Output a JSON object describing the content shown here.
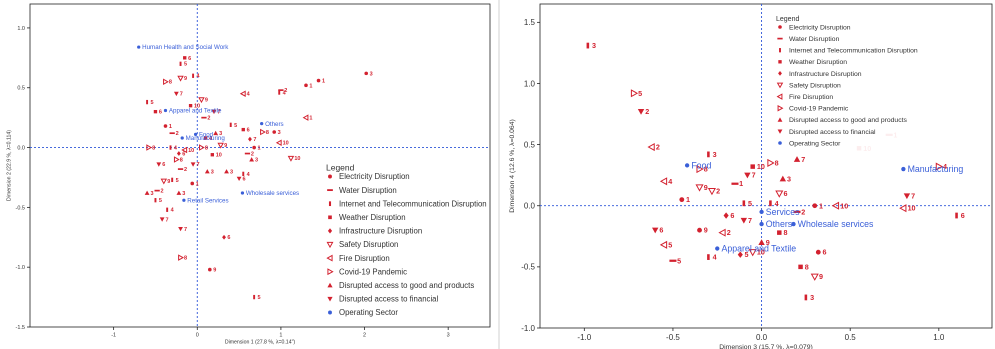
{
  "chart_data": [
    {
      "type": "scatter",
      "panel": "left",
      "xlabel": "Dimension 1 (27.8 %, λ=0.14\")",
      "ylabel": "Dimension 2 (22.9 %, λ=0.114)",
      "xlim": [
        -2,
        3.5
      ],
      "ylim": [
        -1.5,
        1.2
      ],
      "xticks": [
        -1,
        0,
        1,
        2,
        3
      ],
      "yticks": [
        -1.5,
        -1.0,
        -0.5,
        0.0,
        0.5,
        1.0
      ],
      "ytick_labels": [
        "-1.5",
        "-1.0",
        "-0.5",
        "0.0",
        "0.5",
        "1.0"
      ],
      "xtick_labels": [
        "-1",
        "0",
        "1",
        "2",
        "3"
      ],
      "legend": {
        "title": "Legend",
        "placement": "center-right",
        "entries": [
          {
            "label": "Electricity Disruption",
            "marker": "circle"
          },
          {
            "label": "Water Disruption",
            "marker": "dash"
          },
          {
            "label": "Internet and Telecommunication Disruption",
            "marker": "bar"
          },
          {
            "label": "Weather Disruption",
            "marker": "square"
          },
          {
            "label": "Infrastructure Disruption",
            "marker": "diamond"
          },
          {
            "label": "Safety Disruption",
            "marker": "tri-down-open"
          },
          {
            "label": "Fire Disruption",
            "marker": "tri-left-open"
          },
          {
            "label": "Covid-19 Pandemic",
            "marker": "tri-right-open"
          },
          {
            "label": "Disrupted access to good and products",
            "marker": "tri-up"
          },
          {
            "label": "Disrupted access to financial",
            "marker": "tri-down"
          },
          {
            "label": "Operating Sector",
            "marker": "dot-blue"
          }
        ]
      },
      "operating_sectors": [
        {
          "label": "Human Health and Social Work",
          "x": -0.7,
          "y": 0.84
        },
        {
          "label": "Apparel and Textile",
          "x": -0.38,
          "y": 0.31
        },
        {
          "label": "Food",
          "x": -0.02,
          "y": 0.11
        },
        {
          "label": "Manufacturing",
          "x": -0.18,
          "y": 0.08
        },
        {
          "label": "Others",
          "x": 0.77,
          "y": 0.2
        },
        {
          "label": "Wholesale services",
          "x": 0.54,
          "y": -0.38
        },
        {
          "label": "Retail Services",
          "x": -0.16,
          "y": -0.44
        }
      ],
      "category_points": [
        {
          "label": "3",
          "x": 2.02,
          "y": 0.62,
          "marker": "circle"
        },
        {
          "label": "1",
          "x": 1.45,
          "y": 0.56,
          "marker": "circle"
        },
        {
          "label": "1",
          "x": 1.3,
          "y": 0.52,
          "marker": "circle"
        },
        {
          "label": "2",
          "x": 1.0,
          "y": 0.48,
          "marker": "dash"
        },
        {
          "label": "4",
          "x": 0.98,
          "y": 0.46,
          "marker": "bar"
        },
        {
          "label": "4",
          "x": 0.55,
          "y": 0.45,
          "marker": "tri-left-open"
        },
        {
          "label": "1",
          "x": 1.3,
          "y": 0.25,
          "marker": "tri-left-open"
        },
        {
          "label": "10",
          "x": 1.12,
          "y": -0.09,
          "marker": "tri-down-open"
        },
        {
          "label": "10",
          "x": 0.98,
          "y": 0.04,
          "marker": "tri-left-open"
        },
        {
          "label": "8",
          "x": 0.78,
          "y": 0.13,
          "marker": "tri-right-open"
        },
        {
          "label": "3",
          "x": 0.92,
          "y": 0.13,
          "marker": "circle"
        },
        {
          "label": "5",
          "x": 0.4,
          "y": 0.19,
          "marker": "bar"
        },
        {
          "label": "6",
          "x": 0.55,
          "y": 0.15,
          "marker": "square"
        },
        {
          "label": "7",
          "x": 0.63,
          "y": 0.07,
          "marker": "diamond"
        },
        {
          "label": "1",
          "x": 0.68,
          "y": 0.0,
          "marker": "circle"
        },
        {
          "label": "2",
          "x": 0.6,
          "y": -0.05,
          "marker": "dash"
        },
        {
          "label": "3",
          "x": 0.65,
          "y": -0.1,
          "marker": "tri-up"
        },
        {
          "label": "4",
          "x": 0.55,
          "y": -0.22,
          "marker": "bar"
        },
        {
          "label": "6",
          "x": 0.5,
          "y": -0.26,
          "marker": "tri-down"
        },
        {
          "label": "6",
          "x": 0.32,
          "y": -0.75,
          "marker": "diamond"
        },
        {
          "label": "3",
          "x": 0.35,
          "y": -0.2,
          "marker": "tri-up"
        },
        {
          "label": "9",
          "x": 0.28,
          "y": 0.02,
          "marker": "tri-down-open"
        },
        {
          "label": "10",
          "x": 0.18,
          "y": -0.06,
          "marker": "square"
        },
        {
          "label": "4",
          "x": 0.1,
          "y": 0.08,
          "marker": "square"
        },
        {
          "label": "8",
          "x": 0.05,
          "y": 0.0,
          "marker": "tri-right-open"
        },
        {
          "label": "7",
          "x": -0.05,
          "y": -0.14,
          "marker": "tri-down"
        },
        {
          "label": "3",
          "x": 0.12,
          "y": -0.2,
          "marker": "tri-up"
        },
        {
          "label": "2",
          "x": -0.2,
          "y": -0.18,
          "marker": "dash"
        },
        {
          "label": "5",
          "x": -0.3,
          "y": -0.27,
          "marker": "bar"
        },
        {
          "label": "1",
          "x": -0.06,
          "y": -0.3,
          "marker": "circle"
        },
        {
          "label": "3",
          "x": -0.22,
          "y": -0.38,
          "marker": "tri-up"
        },
        {
          "label": "9",
          "x": -0.4,
          "y": -0.28,
          "marker": "tri-down-open"
        },
        {
          "label": "2",
          "x": -0.48,
          "y": -0.36,
          "marker": "dash"
        },
        {
          "label": "4",
          "x": -0.36,
          "y": -0.52,
          "marker": "bar"
        },
        {
          "label": "7",
          "x": -0.42,
          "y": -0.6,
          "marker": "tri-down"
        },
        {
          "label": "5",
          "x": -0.5,
          "y": -0.44,
          "marker": "bar"
        },
        {
          "label": "3",
          "x": -0.6,
          "y": -0.38,
          "marker": "tri-up"
        },
        {
          "label": "6",
          "x": -0.46,
          "y": -0.14,
          "marker": "tri-down"
        },
        {
          "label": "8",
          "x": -0.58,
          "y": 0.0,
          "marker": "tri-right-open"
        },
        {
          "label": "5",
          "x": -0.6,
          "y": 0.38,
          "marker": "bar"
        },
        {
          "label": "6",
          "x": -0.5,
          "y": 0.3,
          "marker": "square"
        },
        {
          "label": "8",
          "x": -0.38,
          "y": 0.55,
          "marker": "tri-right-open"
        },
        {
          "label": "9",
          "x": -0.2,
          "y": 0.58,
          "marker": "tri-down-open"
        },
        {
          "label": "4",
          "x": -0.05,
          "y": 0.6,
          "marker": "bar"
        },
        {
          "label": "5",
          "x": -0.2,
          "y": 0.7,
          "marker": "bar"
        },
        {
          "label": "6",
          "x": -0.15,
          "y": 0.75,
          "marker": "square"
        },
        {
          "label": "7",
          "x": -0.25,
          "y": 0.45,
          "marker": "tri-down"
        },
        {
          "label": "9",
          "x": 0.05,
          "y": 0.4,
          "marker": "tri-down-open"
        },
        {
          "label": "10",
          "x": -0.08,
          "y": 0.35,
          "marker": "square"
        },
        {
          "label": "2",
          "x": 0.08,
          "y": 0.25,
          "marker": "dash"
        },
        {
          "label": "7",
          "x": 0.2,
          "y": 0.3,
          "marker": "tri-down"
        },
        {
          "label": "3",
          "x": 0.22,
          "y": 0.12,
          "marker": "tri-up"
        },
        {
          "label": "1",
          "x": -0.38,
          "y": 0.18,
          "marker": "circle"
        },
        {
          "label": "2",
          "x": -0.3,
          "y": 0.12,
          "marker": "dash"
        },
        {
          "label": "4",
          "x": -0.32,
          "y": 0.0,
          "marker": "bar"
        },
        {
          "label": "6",
          "x": -0.22,
          "y": -0.05,
          "marker": "diamond"
        },
        {
          "label": "8",
          "x": -0.25,
          "y": -0.1,
          "marker": "tri-right-open"
        },
        {
          "label": "10",
          "x": -0.15,
          "y": -0.02,
          "marker": "tri-left-open"
        },
        {
          "label": "7",
          "x": -0.2,
          "y": -0.68,
          "marker": "tri-down"
        },
        {
          "label": "8",
          "x": -0.2,
          "y": -0.92,
          "marker": "tri-right-open"
        },
        {
          "label": "9",
          "x": 0.15,
          "y": -1.02,
          "marker": "circle"
        },
        {
          "label": "5",
          "x": 0.68,
          "y": -1.25,
          "marker": "bar"
        }
      ]
    },
    {
      "type": "scatter",
      "panel": "right",
      "xlabel": "Dimension 3 (15.7 %, λ=0.079)",
      "ylabel": "Dimension 4 (12.6 %, λ=0.064)",
      "xlim": [
        -1.25,
        1.3
      ],
      "ylim": [
        -1.0,
        1.65
      ],
      "xticks": [
        -1.0,
        -0.5,
        0.0,
        0.5,
        1.0
      ],
      "yticks": [
        -1.0,
        -0.5,
        0.0,
        0.5,
        1.0,
        1.5
      ],
      "xtick_labels": [
        "-1.0",
        "-0.5",
        "0.0",
        "0.5",
        "1.0"
      ],
      "ytick_labels": [
        "-1.0",
        "-0.5",
        "0.0",
        "0.5",
        "1.0",
        "1.5"
      ],
      "legend": {
        "title": "Legend",
        "placement": "top-center",
        "entries": [
          {
            "label": "Electricity Disruption",
            "marker": "circle"
          },
          {
            "label": "Water Disruption",
            "marker": "dash"
          },
          {
            "label": "Internet and Telecommunication Disruption",
            "marker": "bar"
          },
          {
            "label": "Weather Disruption",
            "marker": "square"
          },
          {
            "label": "Infrastructure Disruption",
            "marker": "diamond"
          },
          {
            "label": "Safety Disruption",
            "marker": "tri-down-open"
          },
          {
            "label": "Fire Disruption",
            "marker": "tri-left-open"
          },
          {
            "label": "Covid-19 Pandemic",
            "marker": "tri-right-open"
          },
          {
            "label": "Disrupted access to good and products",
            "marker": "tri-up"
          },
          {
            "label": "Disrupted access to financial",
            "marker": "tri-down"
          },
          {
            "label": "Operating Sector",
            "marker": "dot-blue"
          }
        ]
      },
      "operating_sectors": [
        {
          "label": "Food",
          "x": -0.42,
          "y": 0.33
        },
        {
          "label": "Manufacturing",
          "x": 0.8,
          "y": 0.3
        },
        {
          "label": "Services",
          "x": 0.0,
          "y": -0.05
        },
        {
          "label": "Others",
          "x": 0.0,
          "y": -0.15
        },
        {
          "label": "Wholesale services",
          "x": 0.18,
          "y": -0.15
        },
        {
          "label": "Apparel and Textile",
          "x": -0.25,
          "y": -0.35
        }
      ],
      "category_points": [
        {
          "label": "3",
          "x": -0.98,
          "y": 1.31,
          "marker": "bar"
        },
        {
          "label": "5",
          "x": -0.72,
          "y": 0.92,
          "marker": "tri-right-open"
        },
        {
          "label": "2",
          "x": -0.68,
          "y": 0.77,
          "marker": "tri-down"
        },
        {
          "label": "10",
          "x": 0.55,
          "y": 0.47,
          "marker": "square"
        },
        {
          "label": "1",
          "x": 0.72,
          "y": 0.58,
          "marker": "dash"
        },
        {
          "label": "4",
          "x": 1.0,
          "y": 0.32,
          "marker": "tri-right-open"
        },
        {
          "label": "7",
          "x": 0.82,
          "y": 0.08,
          "marker": "tri-down"
        },
        {
          "label": "10",
          "x": 0.8,
          "y": -0.02,
          "marker": "tri-left-open"
        },
        {
          "label": "6",
          "x": 1.1,
          "y": -0.08,
          "marker": "bar"
        },
        {
          "label": "2",
          "x": -0.62,
          "y": 0.48,
          "marker": "tri-left-open"
        },
        {
          "label": "3",
          "x": -0.3,
          "y": 0.42,
          "marker": "bar"
        },
        {
          "label": "8",
          "x": -0.35,
          "y": 0.3,
          "marker": "tri-right-open"
        },
        {
          "label": "4",
          "x": -0.55,
          "y": 0.2,
          "marker": "tri-left-open"
        },
        {
          "label": "1",
          "x": -0.45,
          "y": 0.05,
          "marker": "circle"
        },
        {
          "label": "6",
          "x": -0.6,
          "y": -0.2,
          "marker": "tri-down"
        },
        {
          "label": "9",
          "x": -0.35,
          "y": -0.2,
          "marker": "circle"
        },
        {
          "label": "5",
          "x": -0.5,
          "y": -0.45,
          "marker": "dash"
        },
        {
          "label": "3",
          "x": 0.12,
          "y": 0.22,
          "marker": "tri-up"
        },
        {
          "label": "7",
          "x": 0.2,
          "y": 0.38,
          "marker": "tri-up"
        },
        {
          "label": "8",
          "x": 0.05,
          "y": 0.35,
          "marker": "tri-right-open"
        },
        {
          "label": "10",
          "x": -0.05,
          "y": 0.32,
          "marker": "square"
        },
        {
          "label": "6",
          "x": 0.1,
          "y": 0.1,
          "marker": "tri-down-open"
        },
        {
          "label": "1",
          "x": 0.3,
          "y": 0.0,
          "marker": "circle"
        },
        {
          "label": "10",
          "x": 0.42,
          "y": 0.0,
          "marker": "tri-left-open"
        },
        {
          "label": "2",
          "x": 0.2,
          "y": -0.05,
          "marker": "dash"
        },
        {
          "label": "4",
          "x": 0.05,
          "y": 0.02,
          "marker": "bar"
        },
        {
          "label": "5",
          "x": -0.1,
          "y": 0.02,
          "marker": "bar"
        },
        {
          "label": "6",
          "x": -0.2,
          "y": -0.08,
          "marker": "diamond"
        },
        {
          "label": "7",
          "x": -0.1,
          "y": -0.12,
          "marker": "tri-down"
        },
        {
          "label": "8",
          "x": 0.1,
          "y": -0.22,
          "marker": "square"
        },
        {
          "label": "9",
          "x": 0.0,
          "y": -0.3,
          "marker": "tri-up"
        },
        {
          "label": "10",
          "x": -0.05,
          "y": -0.38,
          "marker": "tri-down-open"
        },
        {
          "label": "5",
          "x": -0.12,
          "y": -0.4,
          "marker": "diamond"
        },
        {
          "label": "4",
          "x": -0.3,
          "y": -0.42,
          "marker": "bar"
        },
        {
          "label": "8",
          "x": 0.22,
          "y": -0.5,
          "marker": "square"
        },
        {
          "label": "9",
          "x": 0.3,
          "y": -0.58,
          "marker": "tri-down-open"
        },
        {
          "label": "6",
          "x": 0.32,
          "y": -0.38,
          "marker": "circle"
        },
        {
          "label": "3",
          "x": 0.25,
          "y": -0.75,
          "marker": "bar"
        },
        {
          "label": "7",
          "x": -0.08,
          "y": 0.25,
          "marker": "tri-down"
        },
        {
          "label": "2",
          "x": -0.28,
          "y": 0.12,
          "marker": "tri-down-open"
        },
        {
          "label": "9",
          "x": -0.35,
          "y": 0.15,
          "marker": "tri-down-open"
        },
        {
          "label": "1",
          "x": -0.15,
          "y": 0.18,
          "marker": "dash"
        },
        {
          "label": "2",
          "x": -0.22,
          "y": -0.22,
          "marker": "tri-left-open"
        },
        {
          "label": "5",
          "x": -0.55,
          "y": -0.32,
          "marker": "tri-left-open"
        }
      ]
    }
  ]
}
